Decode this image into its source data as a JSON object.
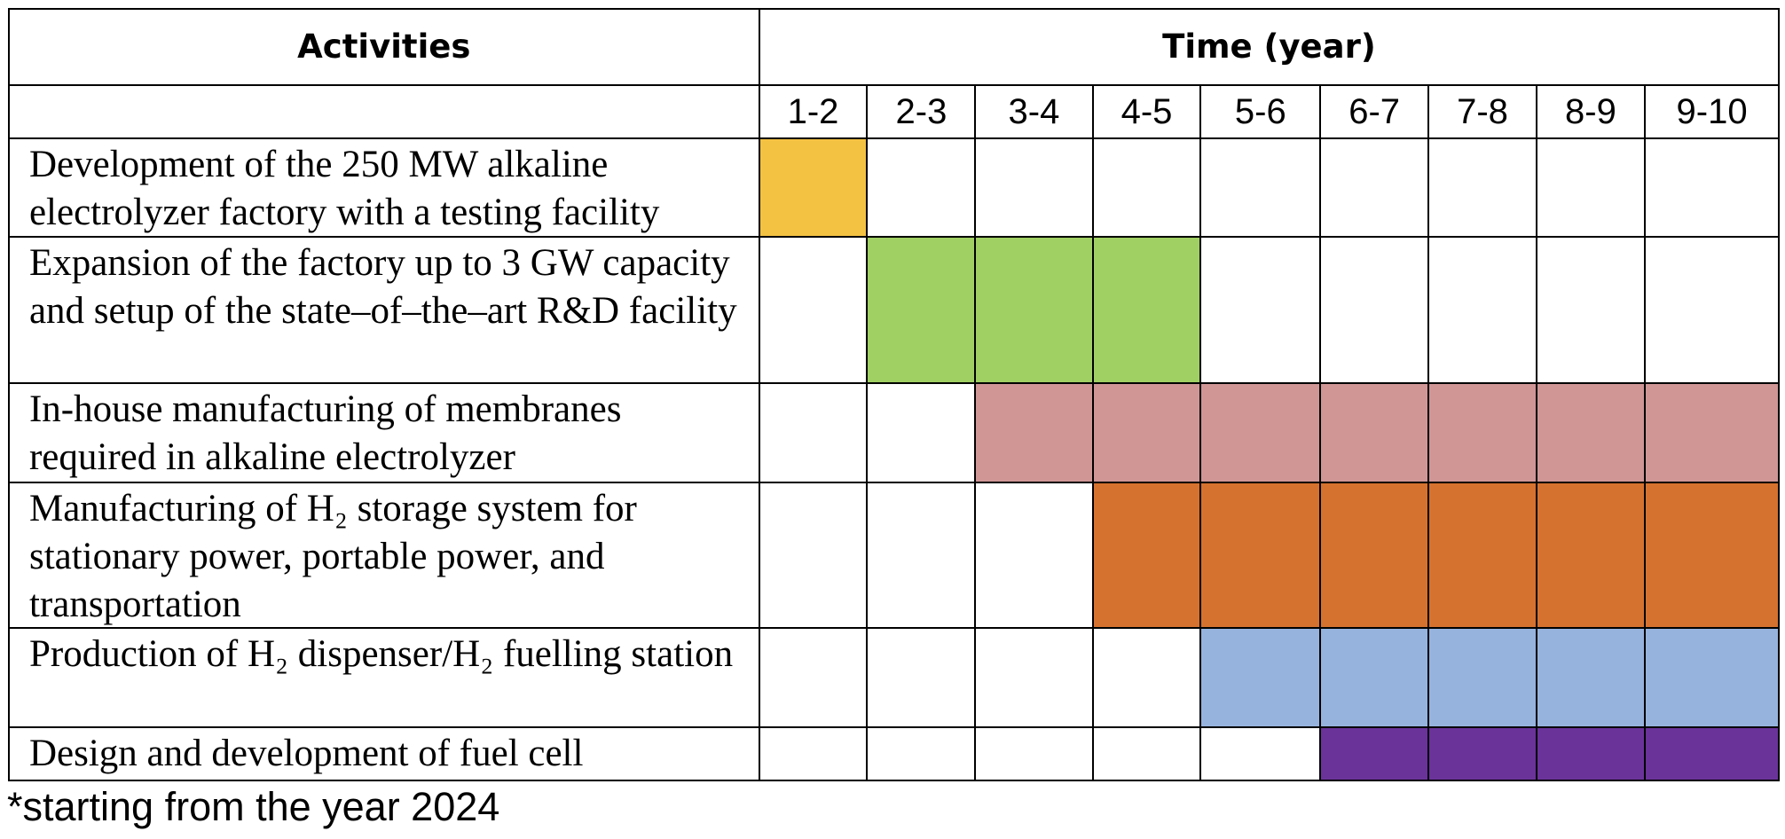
{
  "table": {
    "header": {
      "activities": "Activities",
      "time": "Time (year)"
    },
    "periods": [
      "1-2",
      "2-3",
      "3-4",
      "4-5",
      "5-6",
      "6-7",
      "7-8",
      "8-9",
      "9-10"
    ],
    "rows": [
      {
        "activity": "Development of the 250 MW alkaline electrolyzer factory with a testing facility",
        "color": "#f4c242",
        "cells": [
          true,
          false,
          false,
          false,
          false,
          false,
          false,
          false,
          false
        ]
      },
      {
        "activity": "Expansion of the factory up to 3 GW capacity and setup of the state–of–the–art R&D facility",
        "color": "#a0cf63",
        "cells": [
          false,
          true,
          true,
          true,
          false,
          false,
          false,
          false,
          false
        ]
      },
      {
        "activity": "In-house manufacturing of membranes required in alkaline electrolyzer",
        "color": "#d09696",
        "cells": [
          false,
          false,
          true,
          true,
          true,
          true,
          true,
          true,
          true
        ]
      },
      {
        "activity": "Manufacturing of H₂ storage system for stationary power, portable power, and transportation",
        "color": "#d6722f",
        "cells": [
          false,
          false,
          false,
          true,
          true,
          true,
          true,
          true,
          true
        ]
      },
      {
        "activity": "Production of H₂ dispenser/H₂ fuelling station",
        "color": "#96b3de",
        "cells": [
          false,
          false,
          false,
          false,
          true,
          true,
          true,
          true,
          true
        ]
      },
      {
        "activity": "Design and development of fuel cell",
        "color": "#6a339a",
        "cells": [
          false,
          false,
          false,
          false,
          false,
          true,
          true,
          true,
          true
        ]
      }
    ],
    "footnote": "*starting from the year 2024"
  }
}
